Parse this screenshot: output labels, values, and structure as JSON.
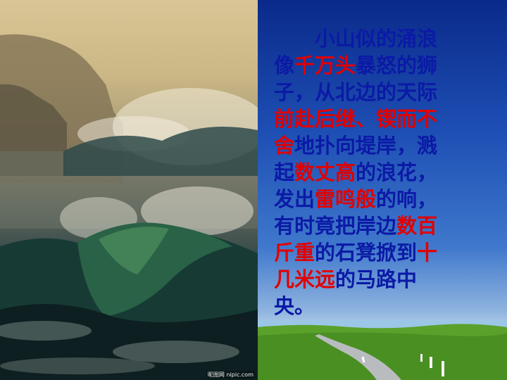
{
  "photo": {
    "credit": "昵图网 nipic.com"
  },
  "passage": {
    "lines": [
      [
        {
          "t": "小山似的涌浪",
          "hl": false
        }
      ],
      [
        {
          "t": "像",
          "hl": false
        },
        {
          "t": "千万头",
          "hl": true
        },
        {
          "t": "暴怒的狮",
          "hl": false
        }
      ],
      [
        {
          "t": "子，从北边的天际",
          "hl": false
        }
      ],
      [
        {
          "t": "前赴后继、锲而不",
          "hl": true
        }
      ],
      [
        {
          "t": "舍",
          "hl": true
        },
        {
          "t": "地扑向堤岸，溅",
          "hl": false
        }
      ],
      [
        {
          "t": "起",
          "hl": false
        },
        {
          "t": "数丈高",
          "hl": true
        },
        {
          "t": "的浪花，",
          "hl": false
        }
      ],
      [
        {
          "t": "发出",
          "hl": false
        },
        {
          "t": "雷鸣般",
          "hl": true
        },
        {
          "t": "的响，",
          "hl": false
        }
      ],
      [
        {
          "t": "有时竟把岸边",
          "hl": false
        },
        {
          "t": "数百",
          "hl": true
        }
      ],
      [
        {
          "t": "斤重",
          "hl": true
        },
        {
          "t": "的石凳掀到",
          "hl": false
        },
        {
          "t": "十",
          "hl": true
        }
      ],
      [
        {
          "t": "几米远",
          "hl": true
        },
        {
          "t": "的马路中",
          "hl": false
        }
      ],
      [
        {
          "t": "央。",
          "hl": false
        }
      ]
    ],
    "text_color": "#0b1aa6",
    "highlight_color": "#e10000"
  }
}
